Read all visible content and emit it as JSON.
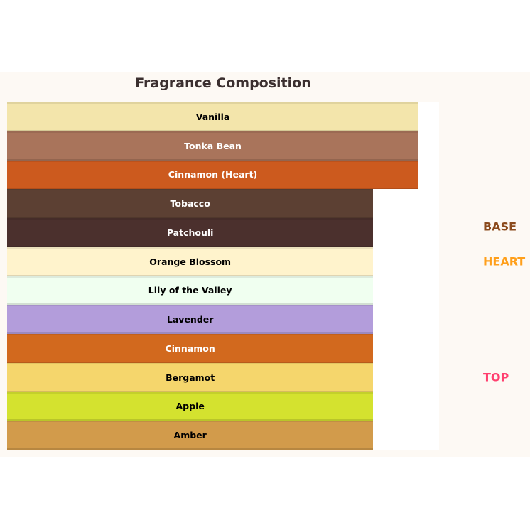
{
  "chart_data": {
    "type": "bar",
    "orientation": "horizontal-stacked-layers",
    "title": "Fragrance Composition",
    "layers": [
      {
        "name": "Vanilla",
        "value": 100,
        "color": "#f3e5ab",
        "text_color": "#000000"
      },
      {
        "name": "Tonka Bean",
        "value": 100,
        "color": "#a9745b",
        "text_color": "#ffffff"
      },
      {
        "name": "Cinnamon (Heart)",
        "value": 100,
        "color": "#cc5a1e",
        "text_color": "#ffffff"
      },
      {
        "name": "Tobacco",
        "value": 89,
        "color": "#5c4033",
        "text_color": "#ffffff"
      },
      {
        "name": "Patchouli",
        "value": 89,
        "color": "#4b302d",
        "text_color": "#ffffff"
      },
      {
        "name": "Orange Blossom",
        "value": 89,
        "color": "#fff3cc",
        "text_color": "#000000"
      },
      {
        "name": "Lily of the Valley",
        "value": 89,
        "color": "#f0fff0",
        "text_color": "#000000"
      },
      {
        "name": "Lavender",
        "value": 89,
        "color": "#b39ddb",
        "text_color": "#000000"
      },
      {
        "name": "Cinnamon",
        "value": 89,
        "color": "#d2691e",
        "text_color": "#ffffff"
      },
      {
        "name": "Bergamot",
        "value": 89,
        "color": "#f5d66c",
        "text_color": "#000000"
      },
      {
        "name": "Apple",
        "value": 89,
        "color": "#d4e22f",
        "text_color": "#000000"
      },
      {
        "name": "Amber",
        "value": 89,
        "color": "#d29b4b",
        "text_color": "#000000"
      }
    ],
    "xlim": [
      0,
      105
    ],
    "categories": [
      {
        "label": "BASE",
        "color": "#8b4a1c"
      },
      {
        "label": "HEART",
        "color": "#ff9f1a"
      },
      {
        "label": "TOP",
        "color": "#ff3f6e"
      }
    ]
  }
}
